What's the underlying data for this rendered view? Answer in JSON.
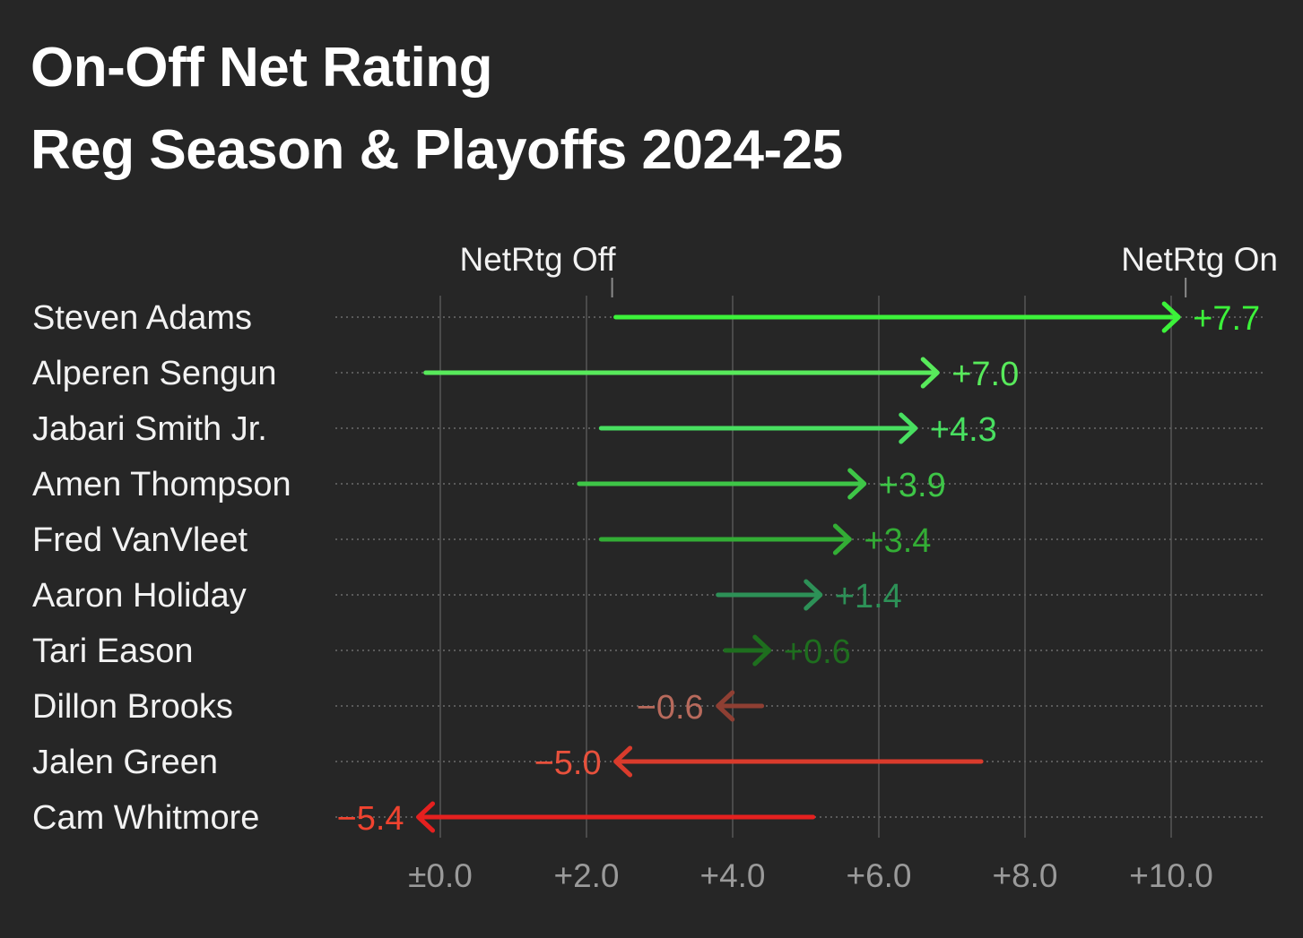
{
  "title": {
    "line1": "On-Off Net Rating",
    "line2": "Reg Season & Playoffs 2024-25"
  },
  "chart_data": {
    "type": "arrow",
    "title": "On-Off Net Rating Reg Season & Playoffs 2024-25",
    "start_label": "NetRtg Off",
    "end_label": "NetRtg On",
    "xlim": [
      -1.4,
      11.4
    ],
    "x_ticks": [
      0,
      2,
      4,
      6,
      8,
      10
    ],
    "x_tick_labels": [
      "±0.0",
      "+2.0",
      "+4.0",
      "+6.0",
      "+8.0",
      "+10.0"
    ],
    "grid": true,
    "players": [
      {
        "name": "Steven Adams",
        "off": 2.4,
        "on": 10.1,
        "diff_label": "+7.7",
        "color": "#3cf23a"
      },
      {
        "name": "Alperen Sengun",
        "off": -0.2,
        "on": 6.8,
        "diff_label": "+7.0",
        "color": "#58ea5b"
      },
      {
        "name": "Jabari Smith Jr.",
        "off": 2.2,
        "on": 6.5,
        "diff_label": "+4.3",
        "color": "#48df60"
      },
      {
        "name": "Amen Thompson",
        "off": 1.9,
        "on": 5.8,
        "diff_label": "+3.9",
        "color": "#3ec547"
      },
      {
        "name": "Fred VanVleet",
        "off": 2.2,
        "on": 5.6,
        "diff_label": "+3.4",
        "color": "#33ad35"
      },
      {
        "name": "Aaron Holiday",
        "off": 3.8,
        "on": 5.2,
        "diff_label": "+1.4",
        "color": "#2d9157"
      },
      {
        "name": "Tari Eason",
        "off": 3.9,
        "on": 4.5,
        "diff_label": "+0.6",
        "color": "#1e6e1e"
      },
      {
        "name": "Dillon Brooks",
        "off": 4.4,
        "on": 3.8,
        "diff_label": "−0.6",
        "color": "#8f3f33",
        "label_color": "#b86a5c"
      },
      {
        "name": "Jalen Green",
        "off": 7.4,
        "on": 2.4,
        "diff_label": "−5.0",
        "color": "#d93b2c",
        "label_color": "#e8513c"
      },
      {
        "name": "Cam Whitmore",
        "off": 5.1,
        "on": -0.3,
        "diff_label": "−5.4",
        "color": "#e5201f",
        "label_color": "#f0432f"
      }
    ]
  }
}
